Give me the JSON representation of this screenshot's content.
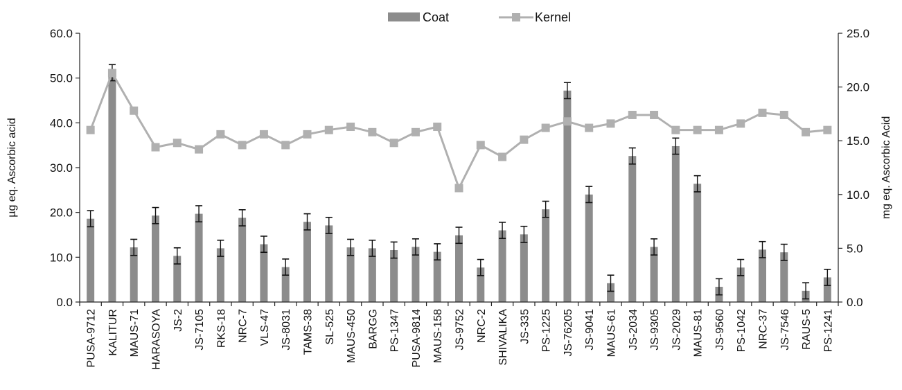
{
  "chart_data": {
    "type": "bar",
    "categories": [
      "PUSA-9712",
      "KALITUR",
      "MAUS-71",
      "HARASOYA",
      "JS-2",
      "JS-7105",
      "RKS-18",
      "NRC-7",
      "VLS-47",
      "JS-8031",
      "TAMS-38",
      "SL-525",
      "MAUS-450",
      "BARGG",
      "PS-1347",
      "PUSA-9814",
      "MAUS-158",
      "JS-9752",
      "NRC-2",
      "SHIVALIKA",
      "JS-335",
      "PS-1225",
      "JS-76205",
      "JS-9041",
      "MAUS-61",
      "JS-2034",
      "JS-9305",
      "JS-2029",
      "MAUS-81",
      "JS-9560",
      "PS-1042",
      "NRC-37",
      "JS-7546",
      "RAUS-5",
      "PS-1241"
    ],
    "series": [
      {
        "name": "Coat",
        "type": "bar",
        "axis": "left",
        "color": "#8c8c8c",
        "values": [
          18.6,
          51.2,
          12.2,
          19.3,
          10.3,
          19.7,
          12.0,
          18.8,
          12.9,
          7.8,
          17.9,
          17.1,
          12.2,
          12.0,
          11.6,
          12.3,
          11.2,
          14.9,
          7.7,
          16.0,
          15.1,
          20.7,
          47.2,
          24.0,
          4.2,
          32.6,
          12.3,
          34.8,
          26.4,
          3.4,
          7.7,
          11.7,
          11.1,
          2.5,
          5.5
        ],
        "errors": [
          1.8,
          1.8,
          1.8,
          1.8,
          1.8,
          1.8,
          1.8,
          1.8,
          1.8,
          1.8,
          1.8,
          1.8,
          1.8,
          1.8,
          1.8,
          1.8,
          1.8,
          1.8,
          1.8,
          1.8,
          1.8,
          1.8,
          1.8,
          1.8,
          1.8,
          1.8,
          1.8,
          1.8,
          1.8,
          1.8,
          1.8,
          1.8,
          1.8,
          1.8,
          1.8
        ]
      },
      {
        "name": "Kernel",
        "type": "line",
        "axis": "right",
        "color": "#b0b0b0",
        "values": [
          16.0,
          21.3,
          17.8,
          14.4,
          14.8,
          14.2,
          15.6,
          14.6,
          15.6,
          14.6,
          15.6,
          16.0,
          16.3,
          15.8,
          14.8,
          15.8,
          16.3,
          10.6,
          14.6,
          13.5,
          15.1,
          16.2,
          16.8,
          16.2,
          16.6,
          17.4,
          17.4,
          16.0,
          16.0,
          16.0,
          16.6,
          17.6,
          17.4,
          15.8,
          16.0
        ]
      }
    ],
    "y_left": {
      "label": "µg eq. Ascorbic acid",
      "ylim": [
        0,
        60
      ],
      "ticks": [
        "0.0",
        "10.0",
        "20.0",
        "30.0",
        "40.0",
        "50.0",
        "60.0"
      ]
    },
    "y_right": {
      "label": "mg eq. Ascorbic  Acid",
      "ylim": [
        0,
        25
      ],
      "ticks": [
        "0.0",
        "5.0",
        "10.0",
        "15.0",
        "20.0",
        "25.0"
      ]
    },
    "legend": {
      "placement": "top-center",
      "items": [
        {
          "label": "Coat",
          "style": "bar",
          "color": "#8c8c8c"
        },
        {
          "label": "Kernel",
          "style": "line-marker",
          "color": "#b0b0b0"
        }
      ]
    },
    "grid": false,
    "error_bars": true
  }
}
